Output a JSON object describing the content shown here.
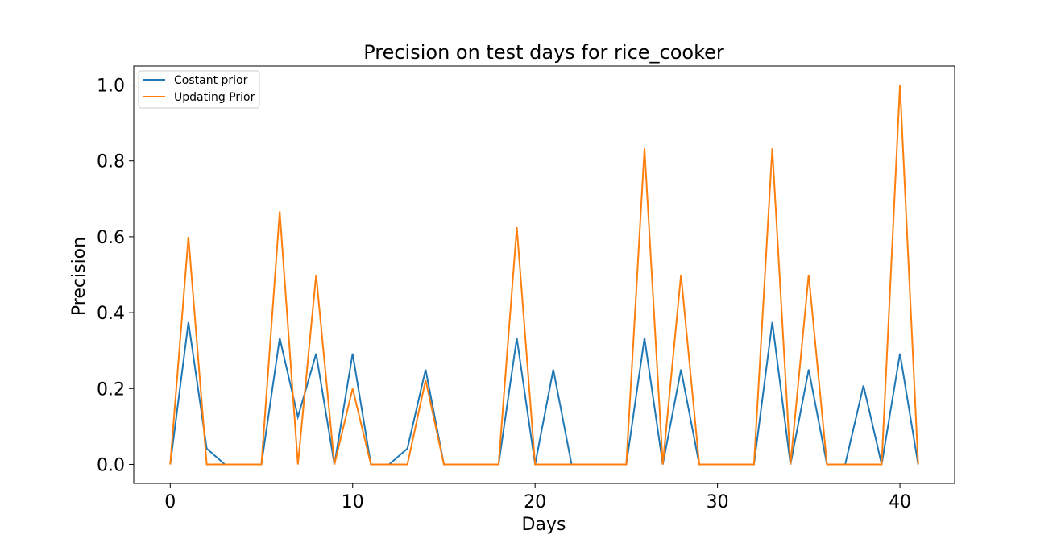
{
  "chart_data": {
    "type": "line",
    "title": "Precision on test days for rice_cooker",
    "xlabel": "Days",
    "ylabel": "Precision",
    "xlim": [
      -2,
      43
    ],
    "ylim": [
      -0.05,
      1.05
    ],
    "xticks": [
      0,
      10,
      20,
      30,
      40
    ],
    "xtick_labels": [
      "0",
      "10",
      "20",
      "30",
      "40"
    ],
    "yticks": [
      0.0,
      0.2,
      0.4,
      0.6,
      0.8,
      1.0
    ],
    "ytick_labels": [
      "0.0",
      "0.2",
      "0.4",
      "0.6",
      "0.8",
      "1.0"
    ],
    "grid": false,
    "legend_position": "upper-left",
    "x": [
      0,
      1,
      2,
      3,
      4,
      5,
      6,
      7,
      8,
      9,
      10,
      11,
      12,
      13,
      14,
      15,
      16,
      17,
      18,
      19,
      20,
      21,
      22,
      23,
      24,
      25,
      26,
      27,
      28,
      29,
      30,
      31,
      32,
      33,
      34,
      35,
      36,
      37,
      38,
      39,
      40,
      41
    ],
    "series": [
      {
        "name": "Costant prior",
        "color": "#1f77b4",
        "values": [
          0.0,
          0.375,
          0.042,
          0.0,
          0.0,
          0.0,
          0.333,
          0.125,
          0.292,
          0.0,
          0.292,
          0.0,
          0.0,
          0.042,
          0.25,
          0.0,
          0.0,
          0.0,
          0.0,
          0.333,
          0.0,
          0.25,
          0.0,
          0.0,
          0.0,
          0.0,
          0.333,
          0.0,
          0.25,
          0.0,
          0.0,
          0.0,
          0.0,
          0.375,
          0.0,
          0.25,
          0.0,
          0.0,
          0.208,
          0.0,
          0.292,
          0.0
        ]
      },
      {
        "name": "Updating Prior",
        "color": "#ff7f0e",
        "values": [
          0.0,
          0.6,
          0.0,
          0.0,
          0.0,
          0.0,
          0.667,
          0.0,
          0.5,
          0.0,
          0.2,
          0.0,
          0.0,
          0.0,
          0.222,
          0.0,
          0.0,
          0.0,
          0.0,
          0.625,
          0.0,
          0.0,
          0.0,
          0.0,
          0.0,
          0.0,
          0.833,
          0.0,
          0.5,
          0.0,
          0.0,
          0.0,
          0.0,
          0.833,
          0.0,
          0.5,
          0.0,
          0.0,
          0.0,
          0.0,
          1.0,
          0.0
        ]
      }
    ]
  }
}
